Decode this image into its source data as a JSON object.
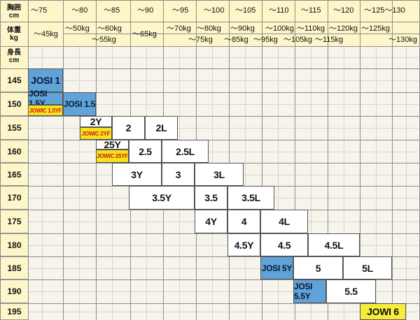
{
  "header": {
    "chest_label": "胸囲\ncm",
    "weight_label": "体重\nkg",
    "height_label": "身長\ncm",
    "chest_values": [
      "〜75",
      "〜80",
      "〜85",
      "〜90",
      "〜95",
      "〜100",
      "〜105",
      "〜110",
      "〜115",
      "〜120",
      "〜125〜130"
    ],
    "weight_values": [
      {
        "text": "〜45kg"
      },
      {
        "text": "〜50kg"
      },
      {
        "text": "〜55kg"
      },
      {
        "text": "〜60kg"
      },
      {
        "text": "〜65kg"
      },
      {
        "text": "〜70kg"
      },
      {
        "text": "〜75kg"
      },
      {
        "text": "〜80kg"
      },
      {
        "text": "〜85kg"
      },
      {
        "text": "〜90kg"
      },
      {
        "text": "〜95kg"
      },
      {
        "text": "〜100kg"
      },
      {
        "text": "〜105kg"
      },
      {
        "text": "〜110kg"
      },
      {
        "text": "〜115kg"
      },
      {
        "text": "〜120kg"
      },
      {
        "text": "〜125kg"
      },
      {
        "text": "〜130kg"
      }
    ]
  },
  "heights": [
    "145",
    "150",
    "155",
    "160",
    "165",
    "170",
    "175",
    "180",
    "185",
    "190",
    "195"
  ],
  "sizes": [
    {
      "label": "JOSI 1",
      "style": "blue"
    },
    {
      "label": "JOSI 1.5Y",
      "style": "blue",
      "sub": "JOWIC 1.5YF"
    },
    {
      "label": "JOSI 1.5",
      "style": "blue"
    },
    {
      "label": "2Y",
      "style": "white",
      "sub": "JOWIC 2YF"
    },
    {
      "label": "2",
      "style": "white"
    },
    {
      "label": "2L",
      "style": "white"
    },
    {
      "label": "25Y",
      "style": "white",
      "sub": "JOWIC 25YF"
    },
    {
      "label": "2.5",
      "style": "white"
    },
    {
      "label": "2.5L",
      "style": "white"
    },
    {
      "label": "3Y",
      "style": "white"
    },
    {
      "label": "3",
      "style": "white"
    },
    {
      "label": "3L",
      "style": "white"
    },
    {
      "label": "3.5Y",
      "style": "white"
    },
    {
      "label": "3.5",
      "style": "white"
    },
    {
      "label": "3.5L",
      "style": "white"
    },
    {
      "label": "4Y",
      "style": "white"
    },
    {
      "label": "4",
      "style": "white"
    },
    {
      "label": "4L",
      "style": "white"
    },
    {
      "label": "4.5Y",
      "style": "white"
    },
    {
      "label": "4.5",
      "style": "white"
    },
    {
      "label": "4.5L",
      "style": "white"
    },
    {
      "label": "JOSI 5Y",
      "style": "blue"
    },
    {
      "label": "5",
      "style": "white"
    },
    {
      "label": "5L",
      "style": "white"
    },
    {
      "label": "JOSI 5.5Y",
      "style": "blue"
    },
    {
      "label": "5.5",
      "style": "white"
    },
    {
      "label": "JOWI 6",
      "style": "yellow"
    }
  ],
  "colors": {
    "header_bg": "#fdf6c9",
    "grid_bg": "#f7f4ec",
    "blue": "#5fa3d8",
    "yellow": "#f6ec3c",
    "sub_text": "#d11a12"
  }
}
